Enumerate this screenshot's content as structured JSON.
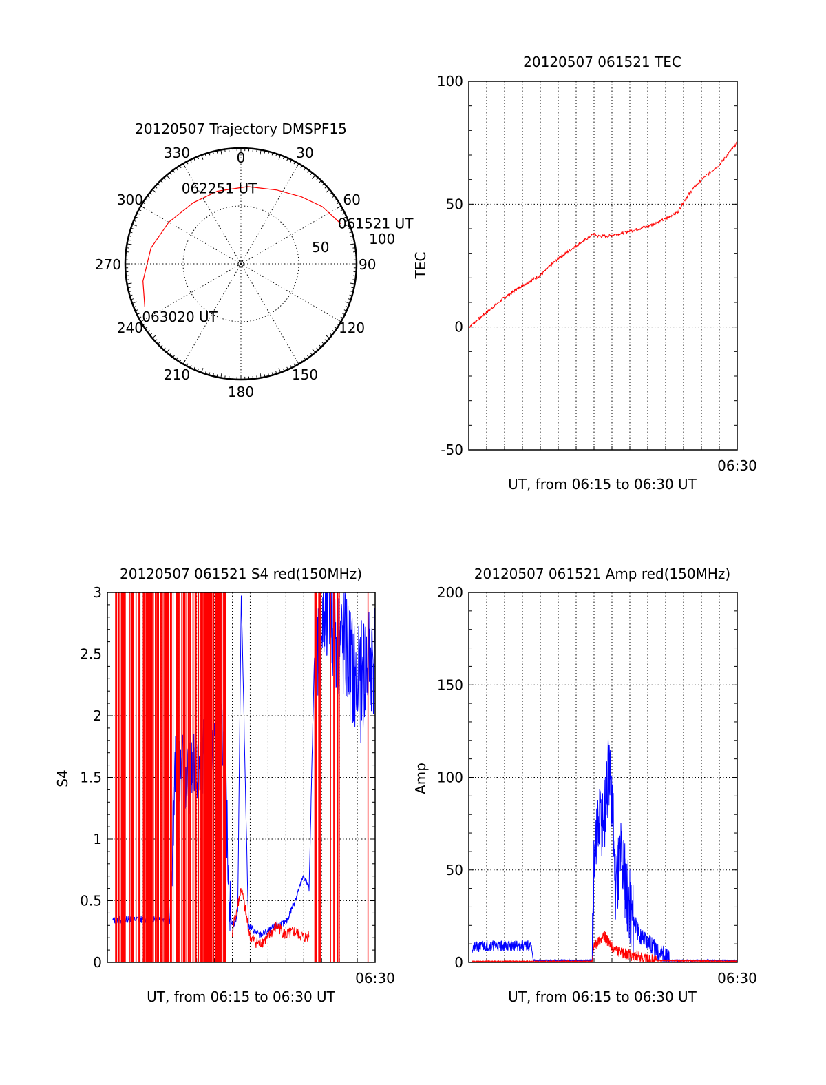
{
  "chart_data": [
    {
      "type": "polar",
      "title": "20120507 Trajectory DMSPF15",
      "angle_labels": [
        "0",
        "30",
        "60",
        "90",
        "120",
        "150",
        "180",
        "210",
        "240",
        "270",
        "300",
        "330"
      ],
      "radial_labels": [
        "50",
        "100"
      ],
      "rlim": [
        0,
        100
      ],
      "grid": true,
      "series": [
        {
          "color": "#ff0000",
          "points": [
            {
              "az": 68,
              "el": 7
            },
            {
              "az": 55,
              "el": 14
            },
            {
              "az": 42,
              "el": 22
            },
            {
              "az": 26,
              "el": 29
            },
            {
              "az": 5,
              "el": 33
            },
            {
              "az": -18,
              "el": 34
            },
            {
              "az": -38,
              "el": 33
            },
            {
              "az": -60,
              "el": 28
            },
            {
              "az": -80,
              "el": 21
            },
            {
              "az": -100,
              "el": 14
            },
            {
              "az": -114,
              "el": 9
            }
          ]
        }
      ],
      "annotations": [
        {
          "text": "061521 UT",
          "az": 68,
          "el": 7
        },
        {
          "text": "062251 UT",
          "az": -18,
          "el": 34
        },
        {
          "text": "063020 UT",
          "az": -114,
          "el": 9
        }
      ]
    },
    {
      "type": "line",
      "title": "20120507 061521 TEC",
      "xlabel": "UT, from 06:15 to 06:30 UT",
      "ylabel": "TEC",
      "xlim": [
        0,
        15
      ],
      "ylim": [
        -50,
        100
      ],
      "yticks": [
        "-50",
        "0",
        "50",
        "100"
      ],
      "xticks_label": "06:30",
      "grid": true,
      "series": [
        {
          "color": "#ff0000",
          "x": [
            0,
            0.5,
            1.0,
            2.0,
            3.0,
            4.0,
            5.0,
            6.0,
            7.0,
            7.2,
            7.8,
            8.4,
            9.0,
            10.0,
            11.0,
            11.7,
            12.0,
            12.5,
            13.0,
            14.0,
            15.0
          ],
          "y": [
            0,
            3,
            6,
            12,
            17,
            21,
            28,
            33,
            38,
            37,
            37,
            38,
            39,
            41,
            44,
            47,
            51,
            56,
            60,
            66,
            75
          ]
        }
      ]
    },
    {
      "type": "line",
      "title": "20120507 061521 S4 red(150MHz)",
      "xlabel": "UT, from 06:15 to 06:30 UT",
      "ylabel": "S4",
      "xlim": [
        0,
        15
      ],
      "ylim": [
        0,
        3
      ],
      "yticks": [
        "0",
        "0.5",
        "1",
        "1.5",
        "2",
        "2.5",
        "3"
      ],
      "xticks_label": "06:30",
      "grid": true,
      "series": [
        {
          "name": "blue",
          "color": "#0000ff",
          "x": [
            0.3,
            1,
            2,
            3,
            3.5,
            3.8,
            4.2,
            4.6,
            5.0,
            5.5,
            6.0,
            6.5,
            6.9,
            7.1,
            7.3,
            7.5,
            7.9,
            8.5,
            9.0,
            9.5,
            10.0,
            10.5,
            11.0,
            11.3,
            11.6,
            12.0,
            12.5,
            13.0,
            13.5,
            14.0,
            14.5,
            15.0
          ],
          "y": [
            0.34,
            0.35,
            0.35,
            0.36,
            0.34,
            1.6,
            1.55,
            1.5,
            1.6,
            1.7,
            1.85,
            1.8,
            0.35,
            0.3,
            0.4,
            3.0,
            0.3,
            0.22,
            0.25,
            0.3,
            0.32,
            0.5,
            0.7,
            0.6,
            2.5,
            2.7,
            2.8,
            2.6,
            2.5,
            2.2,
            2.4,
            2.5
          ]
        },
        {
          "name": "red",
          "color": "#ff0000",
          "x": [
            7.0,
            7.5,
            8.0,
            8.5,
            9.0,
            9.5,
            10.0,
            10.5,
            11.0,
            11.3
          ],
          "y": [
            0.25,
            0.6,
            0.2,
            0.15,
            0.2,
            0.3,
            0.22,
            0.25,
            0.2,
            0.22
          ]
        }
      ]
    },
    {
      "type": "line",
      "title": "20120507 061521 Amp red(150MHz)",
      "xlabel": "UT, from 06:15 to 06:30 UT",
      "ylabel": "Amp",
      "xlim": [
        0,
        15
      ],
      "ylim": [
        0,
        200
      ],
      "yticks": [
        "0",
        "50",
        "100",
        "150",
        "200"
      ],
      "xticks_label": "06:30",
      "grid": true,
      "series": [
        {
          "name": "blue",
          "color": "#0000ff",
          "x": [
            0.2,
            1,
            2,
            3,
            3.5,
            3.6,
            5,
            6,
            6.9,
            7.0,
            7.3,
            7.6,
            7.8,
            8.0,
            8.2,
            8.5,
            9.0,
            9.5,
            10.0,
            10.5,
            11.0,
            11.2,
            12,
            13,
            14,
            15
          ],
          "y": [
            8,
            9,
            9,
            9,
            9,
            1,
            1,
            1,
            1,
            60,
            75,
            80,
            100,
            90,
            45,
            60,
            30,
            15,
            12,
            6,
            4,
            1,
            1,
            1,
            1,
            1
          ]
        },
        {
          "name": "red",
          "color": "#ff0000",
          "x": [
            0.2,
            3.5,
            6.9,
            7.0,
            7.3,
            7.6,
            8.0,
            8.3,
            8.6,
            9.0,
            9.5,
            10.0,
            10.5,
            15
          ],
          "y": [
            0.5,
            0.5,
            0.5,
            10,
            12,
            14,
            8,
            6,
            5,
            4,
            3,
            2,
            1,
            0.5
          ]
        }
      ]
    }
  ]
}
